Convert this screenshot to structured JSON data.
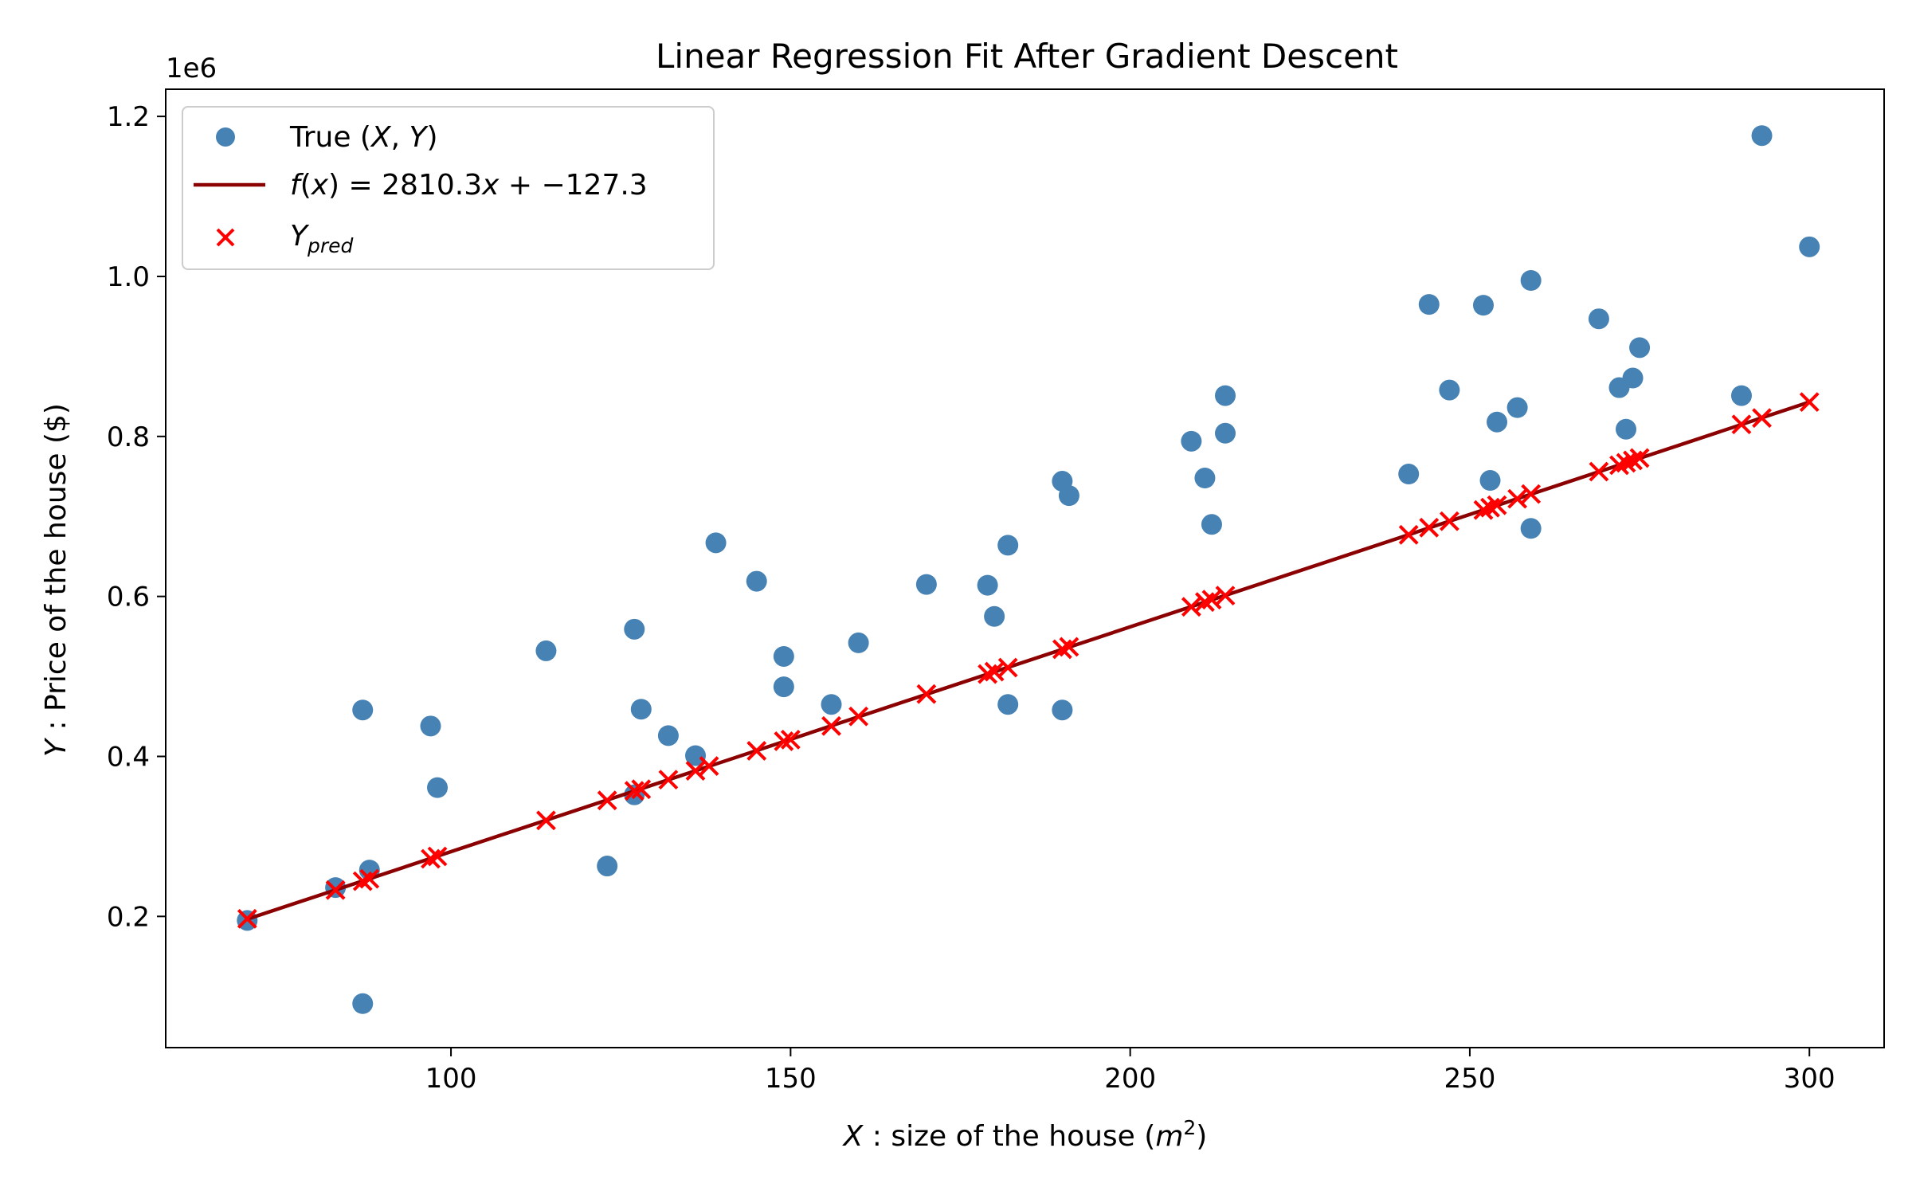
{
  "chart_data": {
    "type": "scatter",
    "title": "Linear Regression Fit After Gradient Descent",
    "xlabel": "X : size of the house (m²)",
    "ylabel": "Y : Price of the house ($)",
    "y_offset_label": "1e6",
    "xlim": [
      58,
      311
    ],
    "ylim": [
      0.036,
      1.234
    ],
    "x_ticks": [
      100,
      150,
      200,
      250,
      300
    ],
    "x_tick_labels": [
      "100",
      "150",
      "200",
      "250",
      "300"
    ],
    "y_ticks": [
      0.2,
      0.4,
      0.6,
      0.8,
      1.0,
      1.2
    ],
    "y_tick_labels": [
      "0.2",
      "0.4",
      "0.6",
      "0.8",
      "1.0",
      "1.2"
    ],
    "colors": {
      "scatter": "#4682b4",
      "fit": "#8b0000",
      "pred": "#ff0000"
    },
    "legend": {
      "position": "upper left",
      "entries": [
        {
          "label": "True (X, Y)"
        },
        {
          "label": "f(x) = 2810.3x + −127.3"
        },
        {
          "label": "Ypred"
        }
      ]
    },
    "fit": {
      "slope": 2810.3,
      "intercept": -127.3,
      "x_range": [
        70,
        300
      ]
    },
    "series": [
      {
        "name": "True (X, Y)",
        "x": [
          70,
          83,
          87,
          87,
          88,
          97,
          98,
          114,
          123,
          127,
          127,
          128,
          132,
          136,
          139,
          145,
          149,
          149,
          156,
          160,
          170,
          179,
          180,
          182,
          182,
          190,
          190,
          191,
          209,
          211,
          212,
          214,
          214,
          241,
          244,
          247,
          252,
          253,
          254,
          257,
          259,
          259,
          269,
          272,
          273,
          274,
          275,
          290,
          293,
          300
        ],
        "y": [
          0.195,
          0.236,
          0.458,
          0.091,
          0.258,
          0.438,
          0.361,
          0.532,
          0.263,
          0.559,
          0.352,
          0.459,
          0.426,
          0.401,
          0.667,
          0.619,
          0.525,
          0.487,
          0.465,
          0.542,
          0.615,
          0.614,
          0.575,
          0.664,
          0.465,
          0.458,
          0.744,
          0.726,
          0.794,
          0.748,
          0.69,
          0.851,
          0.804,
          0.753,
          0.965,
          0.858,
          0.964,
          0.745,
          0.818,
          0.836,
          0.995,
          0.685,
          0.947,
          0.861,
          0.809,
          0.873,
          0.911,
          0.851,
          1.176,
          1.037
        ]
      },
      {
        "name": "Ypred",
        "x": [
          70,
          83,
          87,
          88,
          97,
          98,
          114,
          123,
          127,
          128,
          132,
          136,
          138,
          145,
          149,
          150,
          156,
          160,
          170,
          179,
          180,
          182,
          190,
          191,
          209,
          211,
          212,
          214,
          241,
          244,
          247,
          252,
          253,
          254,
          257,
          259,
          269,
          272,
          273,
          274,
          275,
          290,
          293,
          300
        ],
        "y": [
          0.197,
          0.233,
          0.244,
          0.247,
          0.272,
          0.275,
          0.32,
          0.345,
          0.357,
          0.359,
          0.371,
          0.382,
          0.388,
          0.407,
          0.419,
          0.421,
          0.438,
          0.45,
          0.478,
          0.503,
          0.506,
          0.511,
          0.534,
          0.537,
          0.587,
          0.593,
          0.596,
          0.601,
          0.677,
          0.686,
          0.694,
          0.708,
          0.711,
          0.714,
          0.722,
          0.728,
          0.756,
          0.764,
          0.767,
          0.77,
          0.773,
          0.815,
          0.823,
          0.843
        ]
      }
    ]
  }
}
